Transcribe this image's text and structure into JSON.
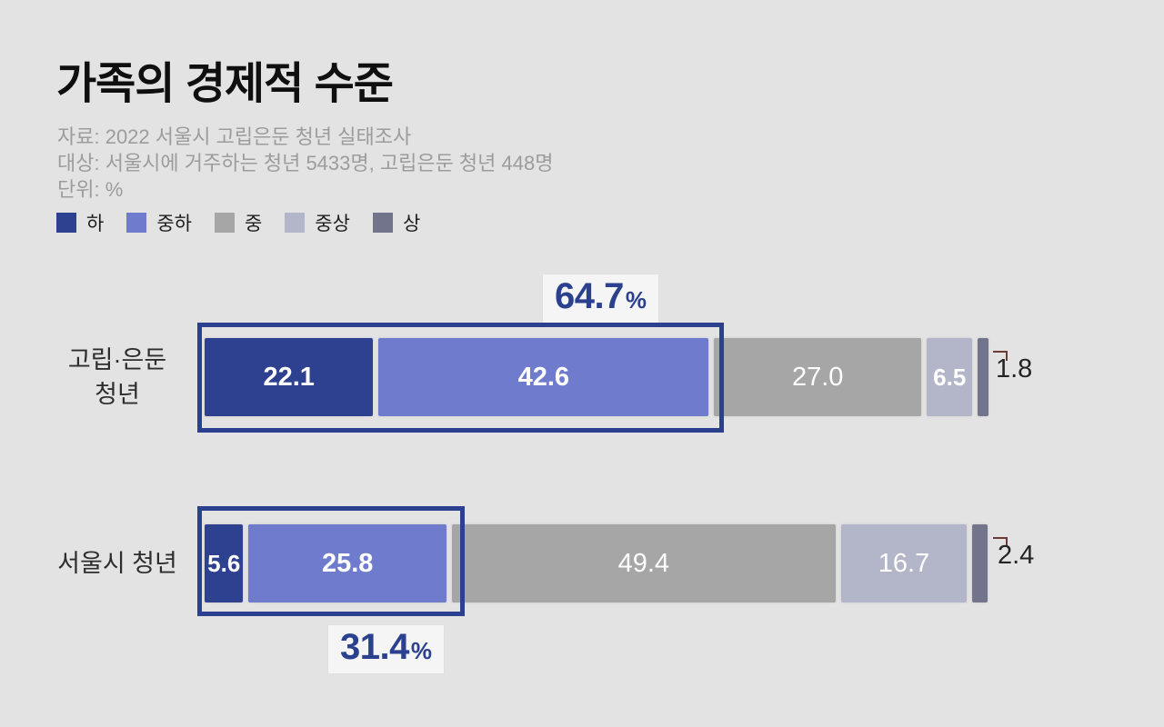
{
  "page": {
    "background": "#e4e3e3"
  },
  "header": {
    "title": "가족의 경제적 수준",
    "source_lines": [
      "자료: 2022 서울시 고립은둔 청년 실태조사",
      "대상: 서울시에 거주하는 청년 5433명, 고립은둔 청년 448명",
      "단위: %"
    ]
  },
  "legend": {
    "items": [
      {
        "label": "하",
        "color": "#2e4191"
      },
      {
        "label": "중하",
        "color": "#6f7cce"
      },
      {
        "label": "중",
        "color": "#a7a6a6"
      },
      {
        "label": "중상",
        "color": "#b3b5c8"
      },
      {
        "label": "상",
        "color": "#72748b"
      }
    ]
  },
  "colors": {
    "accent_blue": "#2b418f",
    "leader_line": "#693c34",
    "annotation_background": "#f5f5f5",
    "background": "#e4e3e3"
  },
  "chart_data": {
    "type": "bar",
    "orientation": "horizontal",
    "stacked": true,
    "unit": "%",
    "xlim": [
      0,
      100
    ],
    "grid": false,
    "legend_position": "top-left",
    "title": "가족의 경제적 수준",
    "categories": [
      "고립·은둔 청년",
      "서울시 청년"
    ],
    "series": [
      {
        "name": "하",
        "color": "#2e4191",
        "values": [
          22.1,
          5.6
        ]
      },
      {
        "name": "중하",
        "color": "#6f7cce",
        "values": [
          42.6,
          25.8
        ]
      },
      {
        "name": "중",
        "color": "#a7a6a6",
        "values": [
          27.0,
          49.4
        ]
      },
      {
        "name": "중상",
        "color": "#b3b5c8",
        "values": [
          6.5,
          16.7
        ]
      },
      {
        "name": "상",
        "color": "#72748b",
        "values": [
          1.8,
          2.4
        ]
      }
    ],
    "annotations": [
      {
        "category": "고립·은둔 청년",
        "text": "64.7",
        "unit": "%",
        "covers": [
          "하",
          "중하"
        ],
        "position": "above-bar"
      },
      {
        "category": "서울시 청년",
        "text": "31.4",
        "unit": "%",
        "covers": [
          "하",
          "중하"
        ],
        "position": "below-bar"
      }
    ]
  },
  "rows": [
    {
      "label_lines": [
        "고립·은둔",
        "청년"
      ],
      "segments": [
        {
          "value": "22.1",
          "pct": 22.1,
          "color": "#2e4191"
        },
        {
          "value": "42.6",
          "pct": 42.6,
          "color": "#6f7cce"
        },
        {
          "value": "27.0",
          "pct": 27.0,
          "color": "#a7a6a6"
        },
        {
          "value": "6.5",
          "pct": 6.5,
          "color": "#b3b5c8"
        },
        {
          "value": "1.8",
          "pct": 1.8,
          "color": "#72748b"
        }
      ],
      "annotation": {
        "value": "64.7",
        "unit": "%"
      },
      "outside_value": "1.8"
    },
    {
      "label_lines": [
        "서울시 청년"
      ],
      "segments": [
        {
          "value": "5.6",
          "pct": 5.6,
          "color": "#2e4191"
        },
        {
          "value": "25.8",
          "pct": 25.8,
          "color": "#6f7cce"
        },
        {
          "value": "49.4",
          "pct": 49.4,
          "color": "#a7a6a6"
        },
        {
          "value": "16.7",
          "pct": 16.7,
          "color": "#b3b5c8"
        },
        {
          "value": "2.4",
          "pct": 2.4,
          "color": "#72748b"
        }
      ],
      "annotation": {
        "value": "31.4",
        "unit": "%"
      },
      "outside_value": "2.4"
    }
  ]
}
